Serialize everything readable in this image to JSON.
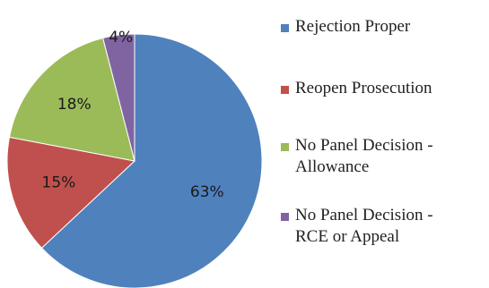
{
  "chart_data": {
    "type": "pie",
    "slices": [
      {
        "name": "Rejection Proper",
        "value": 63,
        "label": "63%",
        "color": "#4f81bd"
      },
      {
        "name": "Reopen Prosecution",
        "value": 15,
        "label": "15%",
        "color": "#c0504d"
      },
      {
        "name": "No Panel Decision - Allowance",
        "value": 18,
        "label": "18%",
        "color": "#9bbb59"
      },
      {
        "name": "No Panel Decision - RCE or Appeal",
        "value": 4,
        "label": "4%",
        "color": "#8064a2"
      }
    ],
    "legend": {
      "placement": "right",
      "entries": [
        "Rejection Proper",
        "Reopen Prosecution",
        "No Panel Decision -\nAllowance",
        "No Panel Decision -\nRCE or Appeal"
      ]
    },
    "title": "",
    "start_angle_deg": 0,
    "direction": "clockwise"
  }
}
